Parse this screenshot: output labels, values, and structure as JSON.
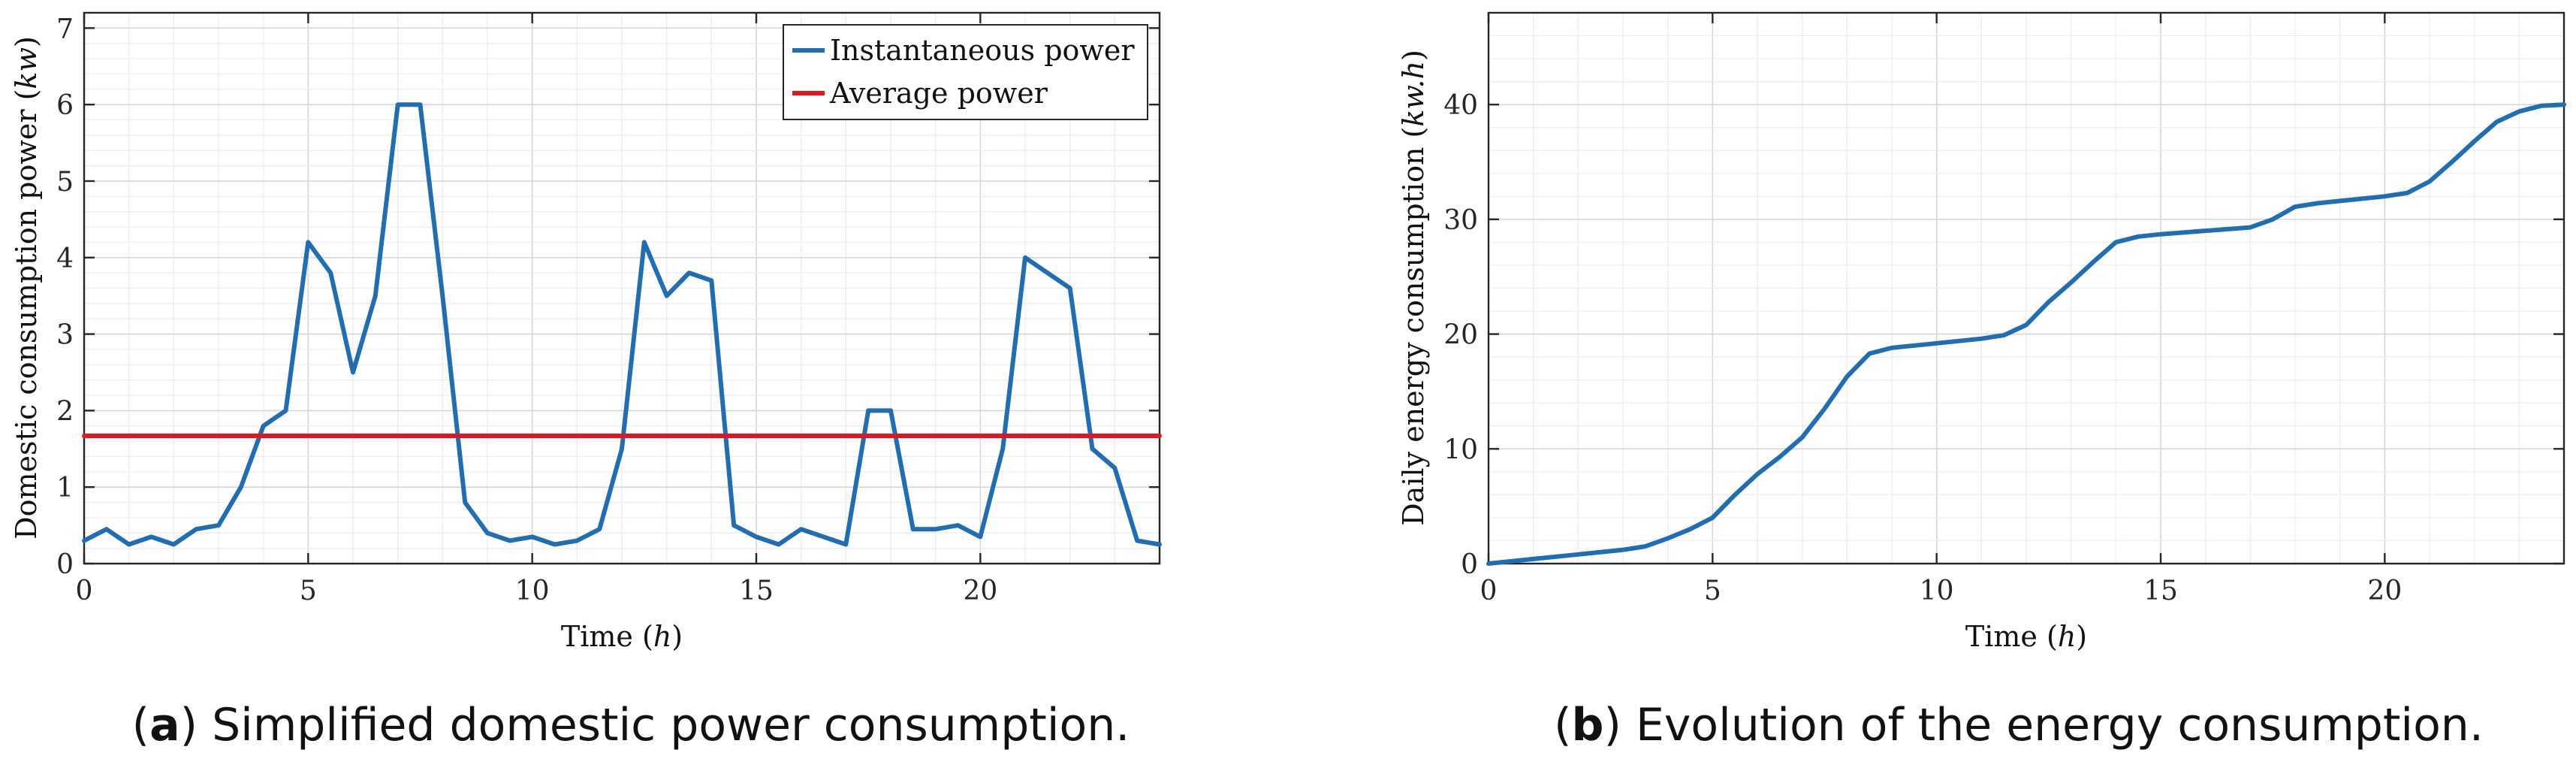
{
  "chart_data": [
    {
      "type": "line",
      "panel_label": "a",
      "caption": "Simplified domestic power consumption.",
      "xlabel_text": "Time",
      "xlabel_unit": "h",
      "ylabel_text": "Domestic consumption power",
      "ylabel_unit": "kw",
      "xlim": [
        0,
        24
      ],
      "ylim": [
        0,
        7.2
      ],
      "xticks": [
        0,
        5,
        10,
        15,
        20
      ],
      "yticks": [
        0,
        1,
        2,
        3,
        4,
        5,
        6,
        7
      ],
      "legend_position": "top-right",
      "grid": true,
      "series": [
        {
          "name": "Instantaneous power",
          "color": "#1f6eb3",
          "x": [
            0,
            0.5,
            1,
            1.5,
            2,
            2.5,
            3,
            3.5,
            4,
            4.5,
            5,
            5.5,
            6,
            6.5,
            7,
            7.5,
            8,
            8.5,
            9,
            9.5,
            10,
            10.5,
            11,
            11.5,
            12,
            12.5,
            13,
            13.5,
            14,
            14.5,
            15,
            15.5,
            16,
            16.5,
            17,
            17.5,
            18,
            18.5,
            19,
            19.5,
            20,
            20.5,
            21,
            21.5,
            22,
            22.5,
            23,
            23.5,
            24
          ],
          "y": [
            0.3,
            0.45,
            0.25,
            0.35,
            0.25,
            0.45,
            0.5,
            1.0,
            1.8,
            2.0,
            4.2,
            3.8,
            2.5,
            3.5,
            6.0,
            6.0,
            3.5,
            0.8,
            0.4,
            0.3,
            0.35,
            0.25,
            0.3,
            0.45,
            1.5,
            4.2,
            3.5,
            3.8,
            3.7,
            0.5,
            0.35,
            0.25,
            0.45,
            0.35,
            0.25,
            2.0,
            2.0,
            0.45,
            0.45,
            0.5,
            0.35,
            1.5,
            4.0,
            3.8,
            3.6,
            1.5,
            1.25,
            0.3,
            0.25
          ]
        },
        {
          "name": "Average power",
          "color": "#e8141c",
          "x": [
            0,
            24
          ],
          "y": [
            1.67,
            1.67
          ]
        }
      ]
    },
    {
      "type": "line",
      "panel_label": "b",
      "caption": "Evolution of the energy consumption.",
      "xlabel_text": "Time",
      "xlabel_unit": "h",
      "ylabel_text": "Daily energy consumption",
      "ylabel_unit": "kw.h",
      "xlim": [
        0,
        24
      ],
      "ylim": [
        0,
        48
      ],
      "xticks": [
        0,
        5,
        10,
        15,
        20
      ],
      "yticks": [
        0,
        10,
        20,
        30,
        40
      ],
      "grid": true,
      "series": [
        {
          "name": "Daily energy consumption",
          "color": "#1f6eb3",
          "x": [
            0,
            1,
            2,
            3,
            3.5,
            4,
            4.5,
            5,
            5.5,
            6,
            6.5,
            7,
            7.5,
            8,
            8.5,
            9,
            10,
            11,
            11.5,
            12,
            12.5,
            13,
            13.5,
            14,
            14.5,
            15,
            16,
            17,
            17.5,
            18,
            18.5,
            19,
            20,
            20.5,
            21,
            21.5,
            22,
            22.5,
            23,
            23.5,
            24
          ],
          "y": [
            0,
            0.4,
            0.8,
            1.2,
            1.5,
            2.2,
            3.0,
            4.0,
            6.0,
            7.8,
            9.3,
            11.0,
            13.5,
            16.3,
            18.3,
            18.8,
            19.2,
            19.6,
            19.9,
            20.8,
            22.8,
            24.5,
            26.3,
            28.0,
            28.5,
            28.7,
            29.0,
            29.3,
            30.0,
            31.1,
            31.4,
            31.6,
            32.0,
            32.3,
            33.3,
            35.0,
            36.8,
            38.5,
            39.4,
            39.9,
            40.0
          ]
        }
      ]
    }
  ]
}
